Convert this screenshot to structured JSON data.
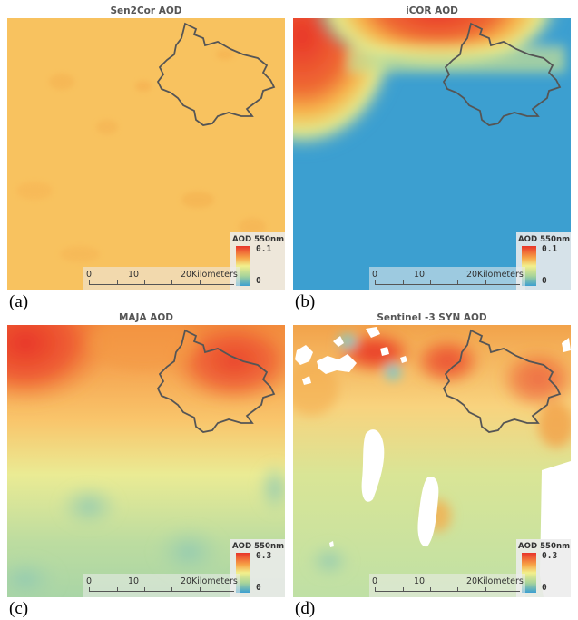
{
  "panels": [
    {
      "title": "Sen2Cor AOD",
      "label": "(a)",
      "legend": {
        "title": "AOD 550nm",
        "max": "0.1",
        "min": "0"
      }
    },
    {
      "title": "iCOR AOD",
      "label": "(b)",
      "legend": {
        "title": "AOD 550nm",
        "max": "0.1",
        "min": "0"
      }
    },
    {
      "title": "MAJA AOD",
      "label": "(c)",
      "legend": {
        "title": "AOD 550nm",
        "max": "0.3",
        "min": "0"
      }
    },
    {
      "title": "Sentinel -3 SYN AOD",
      "label": "(d)",
      "legend": {
        "title": "AOD 550nm",
        "max": "0.3",
        "min": "0"
      }
    }
  ],
  "scalebar": {
    "labels": [
      "0",
      "10",
      "20"
    ],
    "unit": "Kilometers"
  },
  "colors": {
    "high": "#e8352a",
    "orange": "#f7a547",
    "yellow": "#f2ef8c",
    "green": "#a8d49a",
    "low": "#3c9fd0",
    "boundary": "#555555"
  }
}
